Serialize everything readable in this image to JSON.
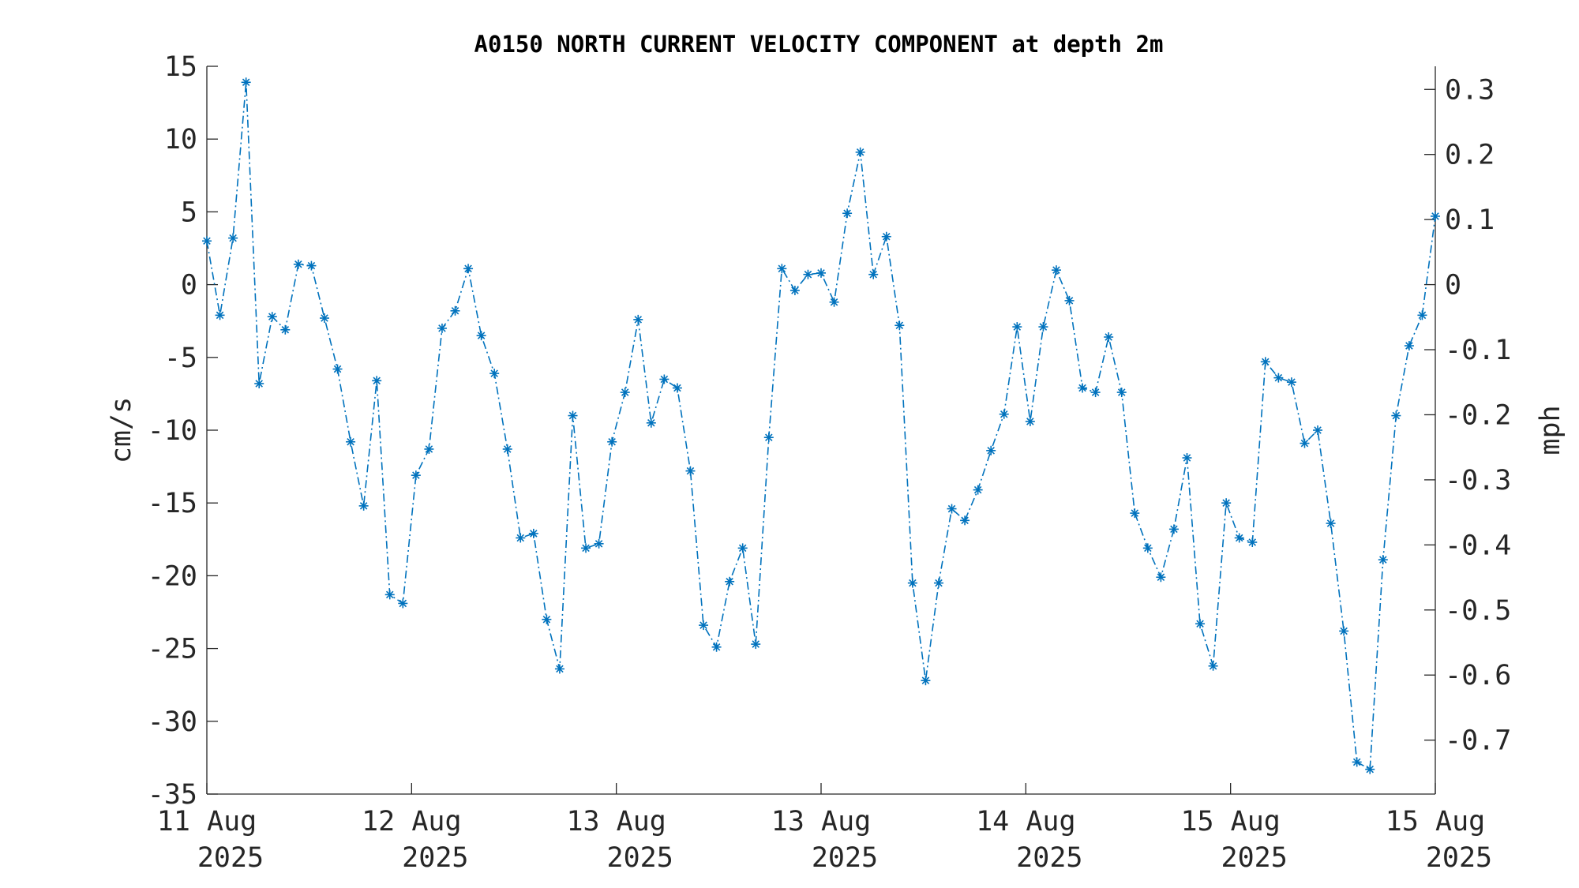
{
  "chart_data": {
    "type": "line",
    "title": "A0150 NORTH CURRENT VELOCITY COMPONENT at depth 2m",
    "ylabel": "cm/s",
    "y2label": "mph",
    "ylim": [
      -35,
      15
    ],
    "y2lim": [
      -0.7829,
      0.3355
    ],
    "yticks": [
      "15",
      "10",
      "5",
      "0",
      "-5",
      "-10",
      "-15",
      "-20",
      "-25",
      "-30",
      "-35"
    ],
    "y2ticks": [
      "0.3",
      "0.2",
      "0.1",
      "0",
      "-0.1",
      "-0.2",
      "-0.3",
      "-0.4",
      "-0.5",
      "-0.6",
      "-0.7"
    ],
    "xticks": [
      {
        "line1": "11 Aug",
        "line2": "2025"
      },
      {
        "line1": "12 Aug",
        "line2": "2025"
      },
      {
        "line1": "13 Aug",
        "line2": "2025"
      },
      {
        "line1": "13 Aug",
        "line2": "2025"
      },
      {
        "line1": "14 Aug",
        "line2": "2025"
      },
      {
        "line1": "15 Aug",
        "line2": "2025"
      },
      {
        "line1": "15 Aug",
        "line2": "2025"
      }
    ],
    "series_color": "#0072BD",
    "line_style": "dash-dot",
    "marker": "asterisk",
    "grid": false,
    "series": [
      {
        "values": [
          3.0,
          -2.1,
          3.2,
          13.9,
          -6.8,
          -2.2,
          -3.1,
          1.4,
          1.3,
          -2.3,
          -5.8,
          -10.8,
          -15.2,
          -6.6,
          -21.3,
          -21.9,
          -13.1,
          -11.3,
          -3.0,
          -1.8,
          1.1,
          -3.5,
          -6.1,
          -11.3,
          -17.4,
          -17.1,
          -23.0,
          -26.4,
          -9.0,
          -18.1,
          -17.8,
          -10.8,
          -7.4,
          -2.4,
          -9.5,
          -6.5,
          -7.1,
          -12.8,
          -23.4,
          -24.9,
          -20.4,
          -18.1,
          -24.7,
          -10.5,
          1.1,
          -0.4,
          0.7,
          0.8,
          -1.2,
          4.9,
          9.1,
          0.7,
          3.3,
          -2.8,
          -20.5,
          -27.2,
          -20.5,
          -15.4,
          -16.2,
          -14.1,
          -11.4,
          -8.9,
          -2.9,
          -9.4,
          -2.9,
          1.0,
          -1.1,
          -7.1,
          -7.4,
          -3.6,
          -7.4,
          -15.7,
          -18.1,
          -20.1,
          -16.8,
          -11.9,
          -23.3,
          -26.2,
          -15.0,
          -17.4,
          -17.7,
          -5.3,
          -6.4,
          -6.7,
          -10.9,
          -10.0,
          -16.4,
          -23.8,
          -32.8,
          -33.3,
          -18.9,
          -9.0,
          -4.2,
          -2.1,
          4.7
        ]
      }
    ]
  }
}
